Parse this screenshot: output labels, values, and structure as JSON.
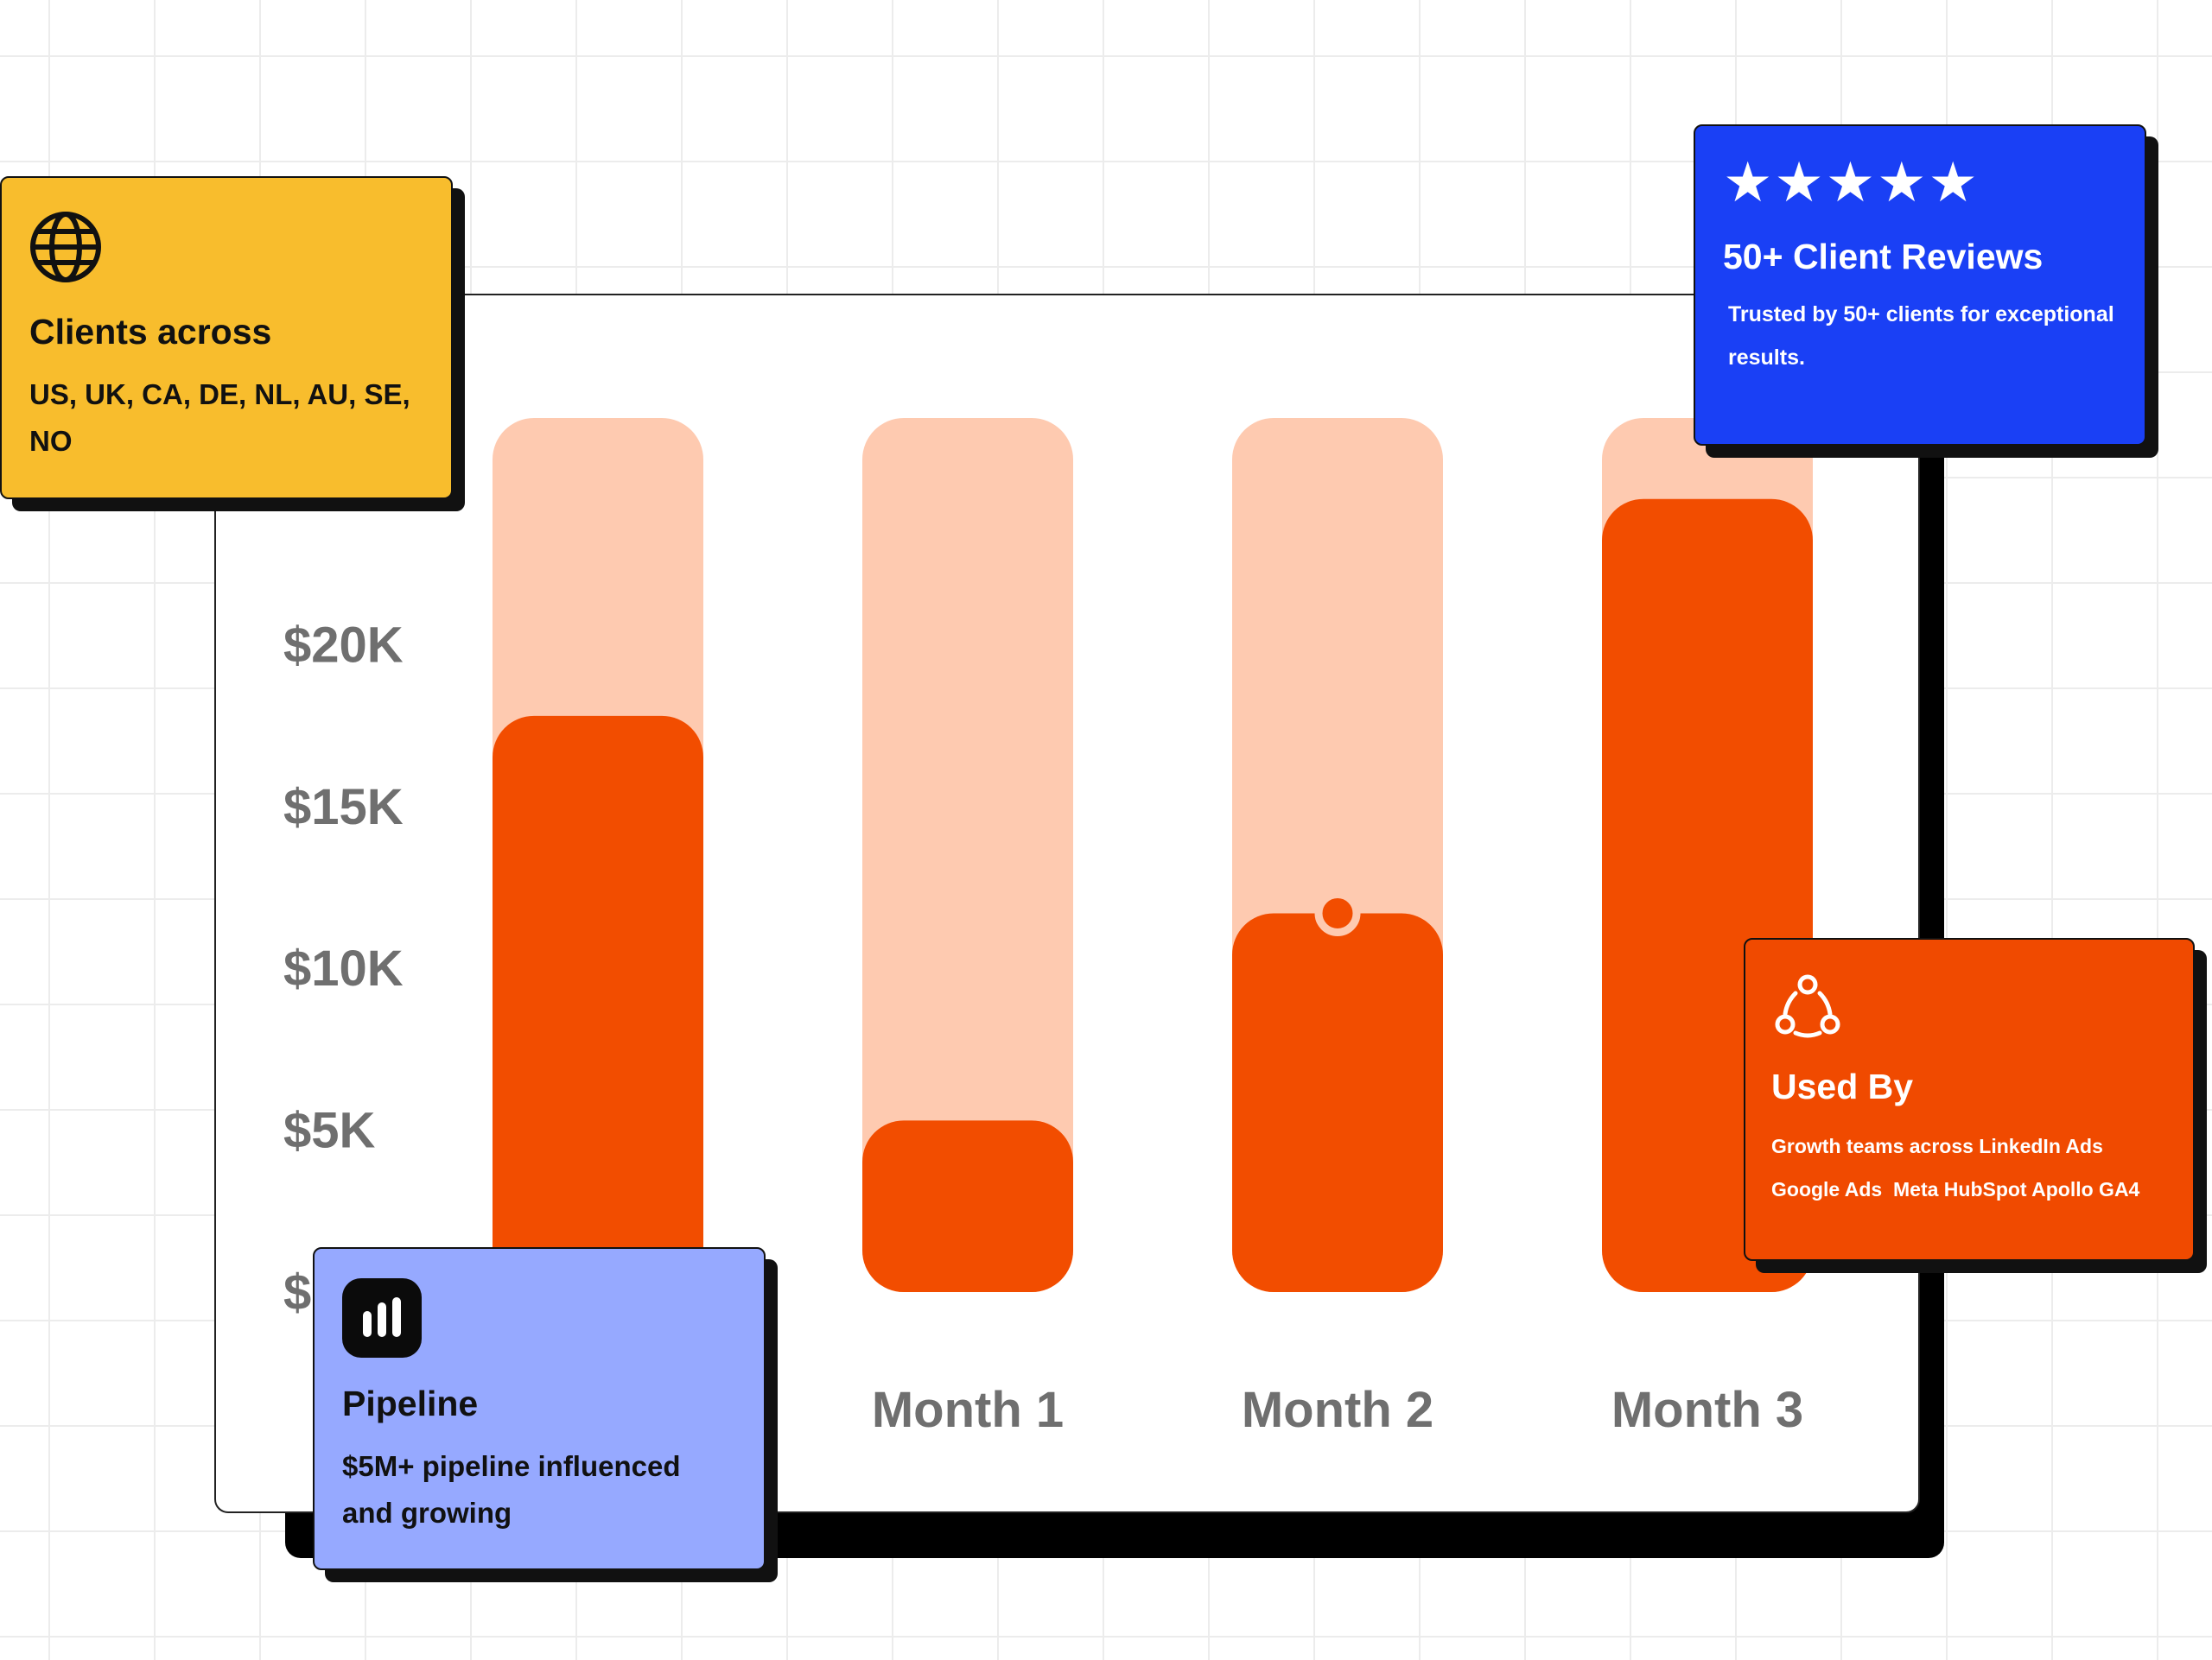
{
  "chart_data": {
    "type": "bar",
    "categories": [
      "",
      "Month 1",
      "Month 2",
      "Month 3"
    ],
    "series": [
      {
        "values": [
          17800,
          5300,
          11700,
          24500
        ]
      }
    ],
    "yticks": [
      "$20K",
      "$15K",
      "$10K",
      "$5K",
      "$"
    ],
    "ylim": [
      0,
      27000
    ],
    "bar_background_max": 27000,
    "grid": false,
    "colors": {
      "bar": "#f24d00",
      "track": "#fecab0"
    }
  },
  "cards": {
    "clients": {
      "icon": "globe-icon",
      "title": "Clients across",
      "text": "US, UK, CA, DE, NL, AU, SE, NO",
      "color": "#f8bd2d"
    },
    "reviews": {
      "stars": "★★★★★",
      "rating": 5,
      "title": "50+ Client Reviews",
      "text": "Trusted by 50+ clients for exceptional results.",
      "color": "#1a40f5"
    },
    "used_by": {
      "icon": "team-icon",
      "title": "Used By",
      "line1": "Growth teams across LinkedIn Ads",
      "line2": "Google Ads  Meta HubSpot Apollo GA4",
      "color": "#f04a00"
    },
    "pipeline": {
      "icon": "bar-chart-icon",
      "title": "Pipeline",
      "text": "$5M+ pipeline influenced and growing",
      "color": "#96a9ff"
    }
  }
}
